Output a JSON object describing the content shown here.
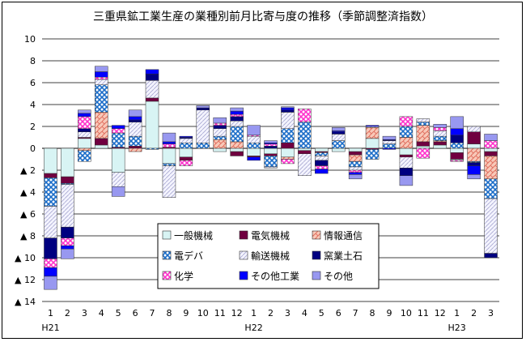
{
  "chart_data": {
    "type": "bar",
    "stacked": true,
    "title": "三重県鉱工業生産の業種別前月比寄与度の推移（季節調整済指数）",
    "categories": [
      "1",
      "2",
      "3",
      "4",
      "5",
      "6",
      "7",
      "8",
      "9",
      "10",
      "11",
      "12",
      "1",
      "2",
      "3",
      "4",
      "5",
      "6",
      "7",
      "8",
      "9",
      "10",
      "11",
      "12",
      "1",
      "2",
      "3"
    ],
    "year_labels": [
      {
        "index": 0,
        "label": "H21"
      },
      {
        "index": 12,
        "label": "H22"
      },
      {
        "index": 24,
        "label": "H23"
      }
    ],
    "ylim": [
      -14,
      10
    ],
    "yticks": [
      10,
      8,
      6,
      4,
      2,
      0,
      -2,
      -4,
      -6,
      -8,
      -10,
      -12,
      -14
    ],
    "ytick_labels": [
      "10",
      "8",
      "6",
      "4",
      "2",
      "0",
      "▲ 2",
      "▲ 4",
      "▲ 6",
      "▲ 8",
      "▲ 10",
      "▲ 12",
      "▲ 14"
    ],
    "grid": true,
    "legend_position": "bottom-center",
    "series": [
      {
        "name": "一般機械",
        "color": "#d8f4f4",
        "pattern": "plain",
        "values": [
          -2.3,
          -2.6,
          0.9,
          0.3,
          -2.2,
          0.0,
          4.3,
          -1.4,
          -0.8,
          0.0,
          -0.3,
          -0.3,
          -0.7,
          -0.5,
          -0.8,
          -0.2,
          -0.3,
          -0.3,
          -0.3,
          0.9,
          0.0,
          -0.6,
          0.2,
          0.3,
          -0.4,
          0.4,
          -0.3
        ]
      },
      {
        "name": "電気機械",
        "color": "#700040",
        "pattern": "solid",
        "values": [
          -0.4,
          -0.6,
          0.1,
          0.6,
          0.1,
          0.2,
          0.3,
          0.1,
          -0.3,
          0.0,
          0.0,
          -0.4,
          -0.1,
          -0.2,
          0.5,
          -0.3,
          -0.1,
          0.0,
          -0.3,
          -0.1,
          0.0,
          -0.2,
          0.4,
          0.3,
          -0.6,
          1.1,
          -0.4
        ]
      },
      {
        "name": "情報通信",
        "color": "#f4b0a0",
        "pattern": "brick",
        "values": [
          0.0,
          0.0,
          -0.2,
          2.4,
          0.0,
          -0.3,
          0.0,
          0.0,
          0.0,
          0.0,
          0.8,
          0.6,
          0.0,
          0.0,
          -0.2,
          0.0,
          0.0,
          0.0,
          -0.6,
          1.0,
          0.0,
          1.0,
          1.5,
          0.1,
          0.0,
          -1.2,
          -2.1
        ]
      },
      {
        "name": "電デバ",
        "color": "#3a7cc8",
        "pattern": "checker",
        "values": [
          -2.6,
          -0.1,
          -1.0,
          2.5,
          1.3,
          0.9,
          -0.1,
          -0.2,
          0.5,
          0.5,
          0.3,
          1.4,
          0.5,
          -1.0,
          1.3,
          2.4,
          -0.3,
          0.7,
          -0.5,
          -0.9,
          0.4,
          1.0,
          0.3,
          0.4,
          0.5,
          -0.1,
          -1.8
        ]
      },
      {
        "name": "輸送機械",
        "color": "#eae8f8",
        "pattern": "diag",
        "values": [
          -2.9,
          -3.9,
          0.5,
          0.5,
          -1.3,
          1.3,
          1.6,
          -2.9,
          0.4,
          3.0,
          0.7,
          0.5,
          0.6,
          -0.1,
          1.5,
          -2.0,
          -0.4,
          0.6,
          -0.3,
          0.1,
          0.3,
          -1.0,
          0.3,
          0.5,
          -0.1,
          0.5,
          -5.0
        ]
      },
      {
        "name": "窯業土石",
        "color": "#000080",
        "pattern": "solid",
        "values": [
          -1.9,
          -1.0,
          0.3,
          0.0,
          0.0,
          0.2,
          0.6,
          0.0,
          0.1,
          0.2,
          0.3,
          0.4,
          0.0,
          0.2,
          0.2,
          0.0,
          -0.5,
          0.2,
          0.0,
          0.0,
          0.1,
          -0.7,
          0.0,
          0.0,
          0.7,
          -0.3,
          -0.4
        ]
      },
      {
        "name": "化学",
        "color": "#ff44cc",
        "pattern": "dots",
        "values": [
          -0.8,
          -0.7,
          1.1,
          0.2,
          0.4,
          0.0,
          0.0,
          0.3,
          -0.5,
          0.0,
          0.2,
          0.2,
          0.1,
          0.2,
          -0.4,
          1.2,
          -0.3,
          0.0,
          -0.2,
          0.0,
          0.0,
          0.9,
          -0.9,
          0.3,
          -0.1,
          0.0,
          0.7
        ]
      },
      {
        "name": "その他工業",
        "color": "#0000ff",
        "pattern": "solid",
        "values": [
          -0.8,
          -0.3,
          0.3,
          0.5,
          0.3,
          0.3,
          0.4,
          0.2,
          0.1,
          0.0,
          0.0,
          0.3,
          -0.3,
          0.1,
          0.2,
          0.0,
          -0.4,
          0.1,
          -0.2,
          0.1,
          -0.1,
          0.0,
          0.0,
          0.0,
          0.6,
          -0.8,
          0.0
        ]
      },
      {
        "name": "その他",
        "color": "#9898f0",
        "pattern": "solid",
        "values": [
          -1.2,
          -0.9,
          0.3,
          0.5,
          -0.9,
          0.6,
          0.0,
          0.8,
          0.0,
          0.2,
          0.5,
          0.3,
          0.9,
          0.2,
          0.1,
          0.0,
          0.0,
          0.3,
          -0.4,
          0.0,
          0.3,
          -0.9,
          0.0,
          0.3,
          1.1,
          -0.4,
          0.6
        ]
      }
    ]
  }
}
